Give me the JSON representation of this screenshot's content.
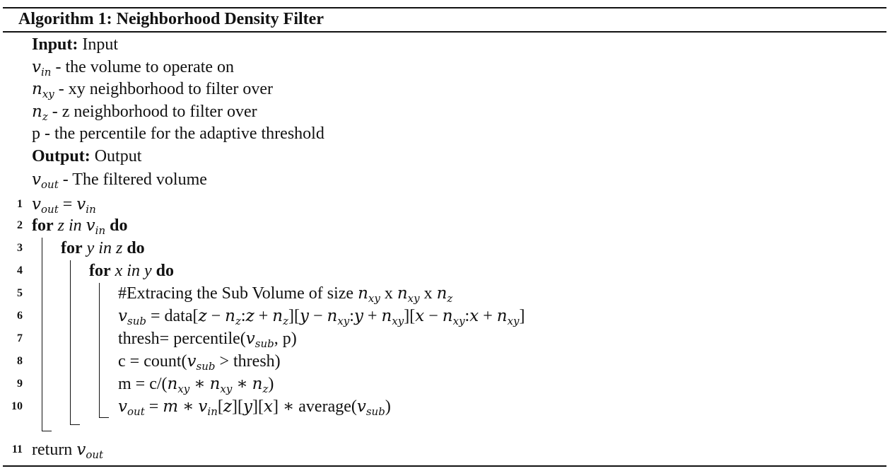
{
  "algorithm": {
    "title": "Algorithm 1: Neighborhood Density Filter",
    "input_label": "Input:",
    "input_value": "Input",
    "inputs": [
      {
        "var": "v",
        "sub": "in",
        "desc": "- the volume to operate on"
      },
      {
        "var": "n",
        "sub": "xy",
        "desc": "- xy neighborhood to filter over"
      },
      {
        "var": "n",
        "sub": "z",
        "desc": "- z neighborhood to filter over"
      },
      {
        "var": "",
        "sub": "",
        "desc": "p - the percentile for the adaptive threshold"
      }
    ],
    "output_label": "Output:",
    "output_value": "Output",
    "outputs": [
      {
        "var": "v",
        "sub": "out",
        "desc": "- The filtered volume"
      }
    ],
    "lines": [
      {
        "num": "1"
      },
      {
        "num": "2",
        "kw_for": "for",
        "kw_do": "do",
        "loop": "z in"
      },
      {
        "num": "3",
        "kw_for": "for",
        "kw_do": "do",
        "loop": "y in z"
      },
      {
        "num": "4",
        "kw_for": "for",
        "kw_do": "do",
        "loop": "x in y"
      },
      {
        "num": "5",
        "text": "#Extracing the Sub Volume of size",
        "x": "x"
      },
      {
        "num": "6",
        "text": "data"
      },
      {
        "num": "7",
        "text": "thresh= percentile(",
        "p": ", p)"
      },
      {
        "num": "8",
        "text": "c = count(",
        "thresh": "thresh)"
      },
      {
        "num": "9",
        "text": "m = c/("
      },
      {
        "num": "10",
        "avg": "average("
      },
      {
        "num": "11",
        "text": "return"
      }
    ]
  }
}
